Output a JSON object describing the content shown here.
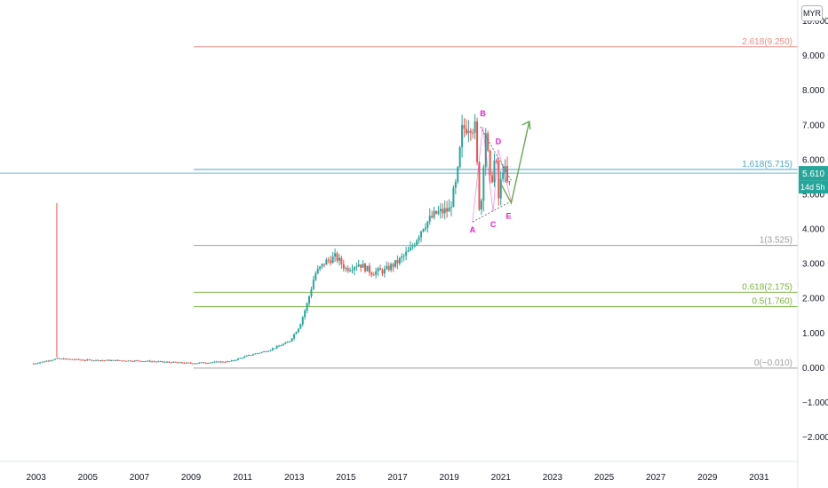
{
  "currency": "MYR",
  "price_badge": {
    "value": "5.610",
    "countdown": "14d 5h",
    "color": "#26a69a"
  },
  "colors": {
    "up": "#26a69a",
    "down": "#ef5350",
    "wave": "#e91ec6",
    "arrow": "#6aa84f"
  },
  "fib_levels": [
    {
      "ratio": "2.618",
      "price": 9.25,
      "label": "2.618(9.250)",
      "color": "#f28b82"
    },
    {
      "ratio": "1.618",
      "price": 5.715,
      "label": "1.618(5.715)",
      "color": "#4aa8c8"
    },
    {
      "ratio": "1",
      "price": 3.525,
      "label": "1(3.525)",
      "color": "#9e9e9e"
    },
    {
      "ratio": "0.618",
      "price": 2.175,
      "label": "0.618(2.175)",
      "color": "#7cb342"
    },
    {
      "ratio": "0.5",
      "price": 1.76,
      "label": "0.5(1.760)",
      "color": "#7cb342"
    },
    {
      "ratio": "0",
      "price": -0.01,
      "label": "0(−0.010)",
      "color": "#9e9e9e"
    }
  ],
  "wave_labels": [
    {
      "text": "A",
      "x": 2019.9,
      "y": 3.9
    },
    {
      "text": "B",
      "x": 2020.3,
      "y": 7.25
    },
    {
      "text": "C",
      "x": 2020.7,
      "y": 4.05
    },
    {
      "text": "D",
      "x": 2020.9,
      "y": 6.45
    },
    {
      "text": "E",
      "x": 2021.3,
      "y": 4.3
    }
  ],
  "chart_data": {
    "type": "candlestick",
    "xlim": [
      2001.6,
      2032.5
    ],
    "ylim": [
      -2.7,
      10.6
    ],
    "y_ticks": [
      "10.000",
      "9.000",
      "8.000",
      "7.000",
      "6.000",
      "5.000",
      "4.000",
      "3.000",
      "2.000",
      "1.000",
      "0.000",
      "−1.000",
      "−2.000"
    ],
    "y_tick_values": [
      10,
      9,
      8,
      7,
      6,
      5,
      4,
      3,
      2,
      1,
      0,
      -1,
      -2
    ],
    "x_ticks": [
      "2003",
      "2005",
      "2007",
      "2009",
      "2011",
      "2013",
      "2015",
      "2017",
      "2019",
      "2021",
      "2023",
      "2025",
      "2027",
      "2029",
      "2031"
    ],
    "x_tick_values": [
      2003,
      2005,
      2007,
      2009,
      2011,
      2013,
      2015,
      2017,
      2019,
      2021,
      2023,
      2025,
      2027,
      2029,
      2031
    ],
    "last_price": 5.61,
    "spike": {
      "x": 2003.8,
      "high": 4.75,
      "low": 0.3
    },
    "price_path": [
      [
        2002.9,
        0.12
      ],
      [
        2003.8,
        0.26
      ],
      [
        2005.0,
        0.22
      ],
      [
        2007.0,
        0.2
      ],
      [
        2009.0,
        0.13
      ],
      [
        2010.5,
        0.18
      ],
      [
        2011.2,
        0.35
      ],
      [
        2012.0,
        0.5
      ],
      [
        2012.8,
        0.75
      ],
      [
        2013.2,
        1.2
      ],
      [
        2013.5,
        1.85
      ],
      [
        2013.8,
        2.7
      ],
      [
        2014.2,
        3.05
      ],
      [
        2014.6,
        3.2
      ],
      [
        2015.0,
        2.85
      ],
      [
        2015.5,
        3.0
      ],
      [
        2016.0,
        2.75
      ],
      [
        2016.5,
        2.8
      ],
      [
        2017.0,
        3.05
      ],
      [
        2017.5,
        3.4
      ],
      [
        2018.0,
        4.1
      ],
      [
        2018.5,
        4.45
      ],
      [
        2019.0,
        4.55
      ],
      [
        2019.3,
        5.4
      ],
      [
        2019.5,
        6.85
      ],
      [
        2019.8,
        7.05
      ],
      [
        2020.0,
        6.9
      ],
      [
        2020.2,
        4.2
      ],
      [
        2020.4,
        6.95
      ],
      [
        2020.6,
        5.2
      ],
      [
        2020.8,
        6.2
      ],
      [
        2020.9,
        4.8
      ],
      [
        2021.1,
        5.9
      ],
      [
        2021.3,
        5.1
      ],
      [
        2021.4,
        5.61
      ]
    ],
    "triangle": {
      "upper": [
        [
          2020.2,
          6.95
        ],
        [
          2021.4,
          5.4
        ]
      ],
      "lower": [
        [
          2019.9,
          4.2
        ],
        [
          2021.4,
          4.8
        ]
      ]
    },
    "projection_arrow": [
      [
        2021.0,
        5.3
      ],
      [
        2021.4,
        4.75
      ],
      [
        2022.1,
        7.1
      ]
    ]
  }
}
